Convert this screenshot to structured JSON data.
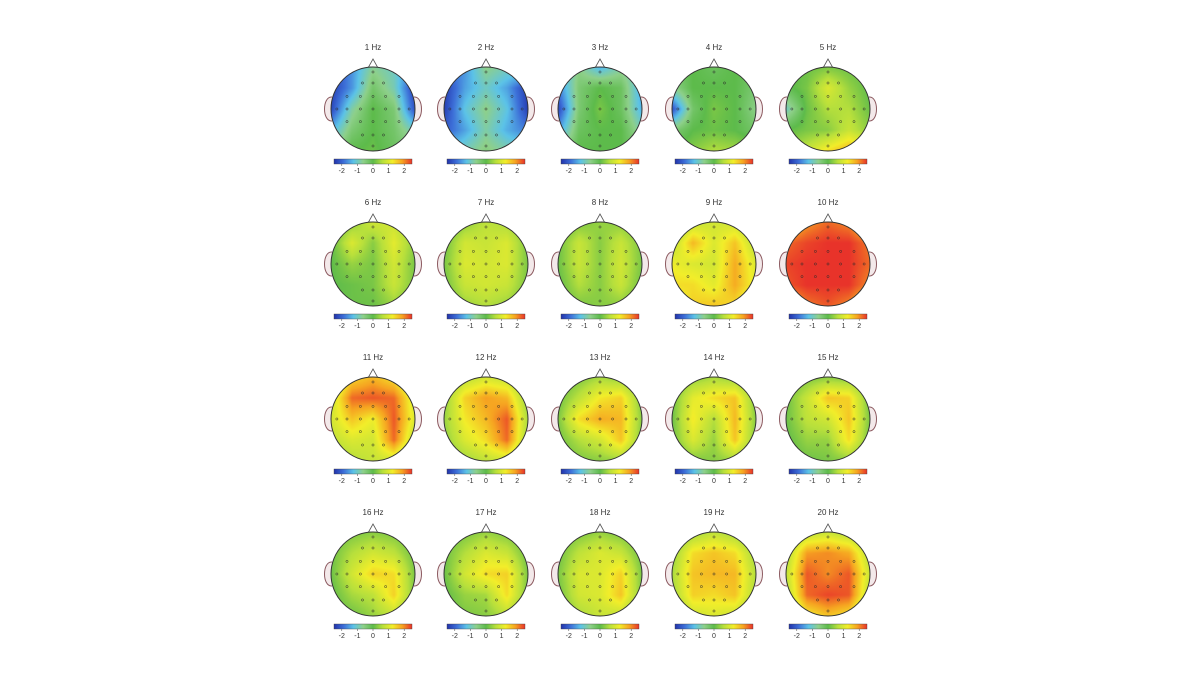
{
  "chart_data": {
    "type": "heatmap",
    "plot_kind": "scalp-topography-grid",
    "layout": {
      "rows": 4,
      "cols": 5
    },
    "colorbar": {
      "range": [
        -2.5,
        2.5
      ],
      "ticks": [
        -2,
        -1,
        0,
        1,
        2
      ],
      "tick_labels": [
        "-2",
        "-1",
        "0",
        "1",
        "2"
      ],
      "colormap": [
        "#2233aa",
        "#3d6fd8",
        "#5cc3e8",
        "#8ed08a",
        "#5dbb4b",
        "#b8e03c",
        "#f2ee2a",
        "#f6a321",
        "#e8332a"
      ]
    },
    "electrode_grid": {
      "note": "5x5 grid of topographic values over the scalp; rows front-to-back (nose at top), columns left-to-right; colour units match the colorbar",
      "columns": [
        "left",
        "left-centre",
        "centre",
        "right-centre",
        "right"
      ],
      "rows": [
        "frontal",
        "fronto-central",
        "central",
        "parietal",
        "occipital"
      ]
    },
    "panels": [
      {
        "title": "1 Hz",
        "values": [
          [
            -2.4,
            -1.6,
            -0.7,
            -1.0,
            -1.8
          ],
          [
            -2.4,
            -1.6,
            -0.3,
            -0.9,
            -2.4
          ],
          [
            -2.3,
            -0.8,
            0.0,
            -0.4,
            -2.2
          ],
          [
            -1.4,
            -0.4,
            0.0,
            -0.3,
            -1.0
          ],
          [
            -0.7,
            0.0,
            0.1,
            -0.2,
            -0.4
          ]
        ]
      },
      {
        "title": "2 Hz",
        "values": [
          [
            -1.9,
            -1.6,
            -0.6,
            -0.9,
            -0.7
          ],
          [
            -2.4,
            -1.5,
            -1.0,
            -1.5,
            -2.4
          ],
          [
            -2.4,
            -1.2,
            -0.6,
            -1.2,
            -2.4
          ],
          [
            -2.1,
            -1.5,
            -0.8,
            -1.4,
            -1.8
          ],
          [
            -1.2,
            -0.9,
            -0.5,
            -0.8,
            -1.0
          ]
        ]
      },
      {
        "title": "3 Hz",
        "values": [
          [
            -1.3,
            -0.6,
            -1.4,
            -0.8,
            -1.0
          ],
          [
            -1.8,
            -0.4,
            0.0,
            -0.2,
            -1.5
          ],
          [
            -2.3,
            -0.4,
            0.2,
            -0.2,
            -1.4
          ],
          [
            -1.6,
            -0.2,
            0.0,
            0.0,
            -0.9
          ],
          [
            -0.7,
            0.0,
            0.0,
            0.0,
            -0.4
          ]
        ]
      },
      {
        "title": "4 Hz",
        "values": [
          [
            -0.3,
            0.0,
            -0.2,
            0.0,
            -0.2
          ],
          [
            -0.7,
            0.0,
            0.0,
            0.0,
            -0.4
          ],
          [
            -2.2,
            -0.3,
            0.2,
            0.0,
            -0.6
          ],
          [
            -0.5,
            0.0,
            0.1,
            0.0,
            -0.3
          ],
          [
            0.1,
            0.3,
            0.6,
            0.5,
            0.3
          ]
        ]
      },
      {
        "title": "5 Hz",
        "values": [
          [
            0.0,
            0.1,
            0.2,
            0.1,
            0.0
          ],
          [
            -0.1,
            0.2,
            1.0,
            0.4,
            0.0
          ],
          [
            -1.0,
            0.1,
            0.6,
            0.6,
            0.1
          ],
          [
            0.0,
            0.2,
            0.3,
            0.8,
            0.3
          ],
          [
            0.4,
            0.8,
            1.4,
            1.8,
            1.3
          ]
        ]
      },
      {
        "title": "6 Hz",
        "values": [
          [
            0.0,
            0.3,
            0.9,
            0.8,
            0.2
          ],
          [
            0.0,
            1.0,
            0.3,
            1.1,
            0.3
          ],
          [
            0.0,
            0.4,
            0.2,
            0.9,
            0.2
          ],
          [
            0.0,
            0.1,
            0.2,
            0.8,
            0.2
          ],
          [
            0.0,
            0.1,
            0.1,
            0.4,
            0.1
          ]
        ]
      },
      {
        "title": "7 Hz",
        "values": [
          [
            0.0,
            0.3,
            0.7,
            0.5,
            0.1
          ],
          [
            0.1,
            0.9,
            0.8,
            1.0,
            0.2
          ],
          [
            0.2,
            1.0,
            0.9,
            1.0,
            0.2
          ],
          [
            0.1,
            0.8,
            0.9,
            0.8,
            0.2
          ],
          [
            0.0,
            0.4,
            0.6,
            0.4,
            0.1
          ]
        ]
      },
      {
        "title": "8 Hz",
        "values": [
          [
            0.0,
            0.2,
            0.4,
            0.3,
            0.1
          ],
          [
            0.1,
            0.8,
            0.3,
            0.8,
            0.2
          ],
          [
            0.1,
            0.8,
            0.3,
            0.9,
            0.2
          ],
          [
            0.0,
            0.6,
            0.3,
            0.8,
            0.1
          ],
          [
            0.0,
            0.2,
            0.3,
            0.3,
            0.0
          ]
        ]
      },
      {
        "title": "9 Hz",
        "values": [
          [
            0.1,
            0.7,
            0.9,
            0.8,
            0.2
          ],
          [
            0.6,
            1.7,
            1.0,
            1.6,
            0.6
          ],
          [
            1.2,
            1.0,
            0.9,
            1.8,
            1.0
          ],
          [
            1.4,
            1.4,
            1.1,
            1.8,
            1.1
          ],
          [
            0.8,
            1.5,
            1.6,
            1.4,
            0.6
          ]
        ]
      },
      {
        "title": "10 Hz",
        "values": [
          [
            1.3,
            1.9,
            2.2,
            2.0,
            1.2
          ],
          [
            2.2,
            2.4,
            2.5,
            2.5,
            2.1
          ],
          [
            2.4,
            2.5,
            2.5,
            2.5,
            2.2
          ],
          [
            2.3,
            2.5,
            2.5,
            2.5,
            2.0
          ],
          [
            1.5,
            2.1,
            2.3,
            2.0,
            1.2
          ]
        ]
      },
      {
        "title": "11 Hz",
        "values": [
          [
            0.3,
            1.4,
            1.7,
            1.3,
            0.4
          ],
          [
            0.8,
            2.2,
            2.3,
            2.2,
            0.9
          ],
          [
            0.9,
            1.6,
            1.2,
            2.3,
            1.0
          ],
          [
            0.7,
            1.0,
            0.9,
            2.2,
            0.6
          ],
          [
            0.3,
            0.6,
            0.8,
            0.8,
            0.2
          ]
        ]
      },
      {
        "title": "12 Hz",
        "values": [
          [
            0.1,
            0.6,
            0.9,
            0.7,
            0.1
          ],
          [
            0.3,
            1.5,
            1.9,
            1.7,
            0.3
          ],
          [
            0.4,
            1.3,
            1.7,
            2.3,
            0.5
          ],
          [
            0.3,
            1.0,
            1.4,
            2.2,
            0.4
          ],
          [
            0.1,
            0.4,
            0.7,
            0.8,
            0.1
          ]
        ]
      },
      {
        "title": "13 Hz",
        "values": [
          [
            0.0,
            0.2,
            0.5,
            0.3,
            0.0
          ],
          [
            0.1,
            0.7,
            1.3,
            1.5,
            0.2
          ],
          [
            0.2,
            1.4,
            1.8,
            1.7,
            0.3
          ],
          [
            0.1,
            0.6,
            0.9,
            1.6,
            0.2
          ],
          [
            0.0,
            0.2,
            0.3,
            0.4,
            0.0
          ]
        ]
      },
      {
        "title": "14 Hz",
        "values": [
          [
            0.0,
            0.3,
            0.5,
            0.3,
            0.0
          ],
          [
            0.1,
            1.1,
            1.4,
            1.6,
            0.2
          ],
          [
            0.1,
            1.3,
            0.6,
            1.7,
            0.3
          ],
          [
            0.1,
            1.0,
            0.4,
            1.6,
            0.2
          ],
          [
            0.0,
            0.2,
            0.3,
            0.4,
            0.0
          ]
        ]
      },
      {
        "title": "15 Hz",
        "values": [
          [
            0.0,
            0.2,
            0.3,
            0.2,
            0.0
          ],
          [
            0.1,
            0.8,
            1.6,
            1.5,
            0.1
          ],
          [
            0.1,
            0.7,
            0.9,
            1.6,
            0.2
          ],
          [
            0.0,
            0.4,
            0.4,
            1.4,
            0.1
          ],
          [
            0.0,
            0.1,
            0.2,
            0.3,
            0.0
          ]
        ]
      },
      {
        "title": "16 Hz",
        "values": [
          [
            0.0,
            0.2,
            0.3,
            0.2,
            0.0
          ],
          [
            0.1,
            0.6,
            0.9,
            0.7,
            0.1
          ],
          [
            0.1,
            0.9,
            1.5,
            1.4,
            0.2
          ],
          [
            0.0,
            0.5,
            0.7,
            1.5,
            0.2
          ],
          [
            0.0,
            0.1,
            0.4,
            0.7,
            0.0
          ]
        ]
      },
      {
        "title": "17 Hz",
        "values": [
          [
            0.0,
            0.2,
            0.4,
            0.2,
            0.0
          ],
          [
            0.1,
            0.6,
            1.0,
            0.8,
            0.1
          ],
          [
            0.1,
            0.9,
            1.4,
            1.5,
            0.2
          ],
          [
            0.0,
            0.4,
            0.5,
            1.4,
            0.2
          ],
          [
            0.0,
            0.2,
            0.3,
            0.6,
            0.0
          ]
        ]
      },
      {
        "title": "18 Hz",
        "values": [
          [
            0.0,
            0.2,
            0.4,
            0.2,
            0.0
          ],
          [
            0.1,
            0.7,
            1.0,
            0.8,
            0.1
          ],
          [
            0.2,
            1.0,
            1.0,
            1.5,
            0.2
          ],
          [
            0.1,
            0.9,
            1.0,
            1.6,
            0.2
          ],
          [
            0.0,
            0.5,
            0.8,
            0.7,
            0.0
          ]
        ]
      },
      {
        "title": "19 Hz",
        "values": [
          [
            0.0,
            0.4,
            0.7,
            0.4,
            0.0
          ],
          [
            0.3,
            1.4,
            1.6,
            1.4,
            0.4
          ],
          [
            0.5,
            1.6,
            1.7,
            1.7,
            0.6
          ],
          [
            0.4,
            1.5,
            1.4,
            1.6,
            0.5
          ],
          [
            0.1,
            0.8,
            1.0,
            0.8,
            0.1
          ]
        ]
      },
      {
        "title": "20 Hz",
        "values": [
          [
            0.1,
            0.6,
            0.8,
            0.5,
            0.1
          ],
          [
            0.5,
            1.9,
            2.0,
            1.8,
            0.6
          ],
          [
            0.7,
            2.3,
            2.0,
            2.3,
            0.8
          ],
          [
            0.5,
            2.2,
            2.4,
            2.3,
            0.6
          ],
          [
            0.2,
            1.2,
            1.6,
            1.3,
            0.2
          ]
        ]
      }
    ]
  }
}
